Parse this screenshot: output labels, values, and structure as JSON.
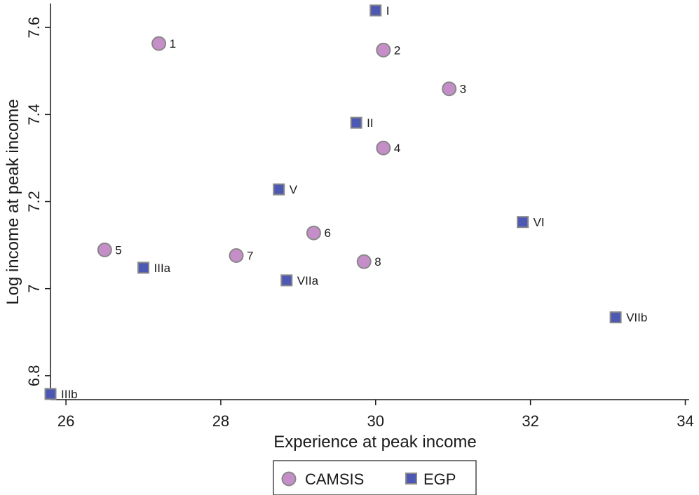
{
  "chart_data": {
    "type": "scatter",
    "xlabel": "Experience at peak income",
    "ylabel": "Log income at peak income",
    "xlim": [
      25.8,
      34.05
    ],
    "ylim": [
      6.745,
      7.655
    ],
    "x_ticks": [
      26,
      28,
      30,
      32,
      34
    ],
    "y_ticks": [
      6.8,
      7,
      7.2,
      7.4,
      7.6
    ],
    "x_tick_labels": [
      "26",
      "28",
      "30",
      "32",
      "34"
    ],
    "y_tick_labels": [
      "6.8",
      "7",
      "7.2",
      "7.4",
      "7.6"
    ],
    "grid": false,
    "legend_position": "bottom",
    "series": [
      {
        "name": "CAMSIS",
        "marker": "circle",
        "color": "#c68ec8",
        "points": [
          {
            "label": "1",
            "x": 27.2,
            "y": 7.563
          },
          {
            "label": "2",
            "x": 30.1,
            "y": 7.548
          },
          {
            "label": "3",
            "x": 30.95,
            "y": 7.459
          },
          {
            "label": "4",
            "x": 30.1,
            "y": 7.323
          },
          {
            "label": "5",
            "x": 26.5,
            "y": 7.089
          },
          {
            "label": "6",
            "x": 29.2,
            "y": 7.128
          },
          {
            "label": "7",
            "x": 28.2,
            "y": 7.076
          },
          {
            "label": "8",
            "x": 29.85,
            "y": 7.062
          }
        ]
      },
      {
        "name": "EGP",
        "marker": "square",
        "color": "#4d58b5",
        "points": [
          {
            "label": "I",
            "x": 30.0,
            "y": 7.639
          },
          {
            "label": "II",
            "x": 29.75,
            "y": 7.381
          },
          {
            "label": "V",
            "x": 28.75,
            "y": 7.228
          },
          {
            "label": "VI",
            "x": 31.9,
            "y": 7.153
          },
          {
            "label": "IIIa",
            "x": 27.0,
            "y": 7.048
          },
          {
            "label": "VIIa",
            "x": 28.85,
            "y": 7.019
          },
          {
            "label": "VIIb",
            "x": 33.1,
            "y": 6.934
          },
          {
            "label": "IIIb",
            "x": 25.8,
            "y": 6.758
          }
        ]
      }
    ]
  }
}
